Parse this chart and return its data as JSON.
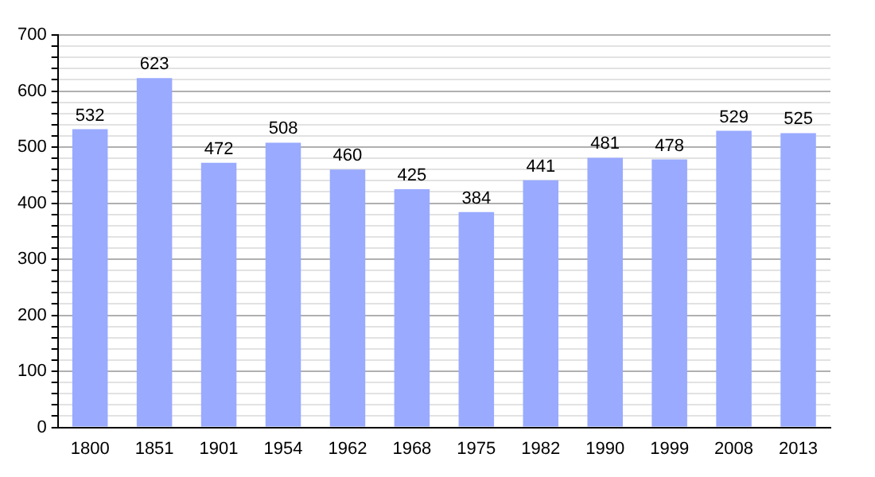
{
  "chart_data": {
    "type": "bar",
    "categories": [
      "1800",
      "1851",
      "1901",
      "1954",
      "1962",
      "1968",
      "1975",
      "1982",
      "1990",
      "1999",
      "2008",
      "2013"
    ],
    "values": [
      532,
      623,
      472,
      508,
      460,
      425,
      384,
      441,
      481,
      478,
      529,
      525
    ],
    "color": "#99aaff",
    "ylim": [
      0,
      700
    ],
    "yticks": [
      0,
      {
        "value": 20,
        "label": null
      },
      {
        "value": 40,
        "label": null
      },
      {
        "value": 60,
        "label": null
      },
      {
        "value": 80,
        "label": null
      },
      100,
      {
        "value": 120,
        "label": null
      },
      {
        "value": 140,
        "label": null
      },
      {
        "value": 160,
        "label": null
      },
      {
        "value": 180,
        "label": null
      },
      200,
      {
        "value": 220,
        "label": null
      },
      {
        "value": 240,
        "label": null
      },
      {
        "value": 260,
        "label": null
      },
      {
        "value": 280,
        "label": null
      },
      300,
      {
        "value": 320,
        "label": null
      },
      {
        "value": 340,
        "label": null
      },
      {
        "value": 360,
        "label": null
      },
      {
        "value": 380,
        "label": null
      },
      400,
      {
        "value": 420,
        "label": null
      },
      {
        "value": 440,
        "label": null
      },
      {
        "value": 460,
        "label": null
      },
      {
        "value": 480,
        "label": null
      },
      500,
      {
        "value": 520,
        "label": null
      },
      {
        "value": 540,
        "label": null
      },
      {
        "value": 560,
        "label": null
      },
      {
        "value": 580,
        "label": null
      },
      600,
      {
        "value": 620,
        "label": null
      },
      {
        "value": 640,
        "label": null
      },
      {
        "value": 660,
        "label": null
      },
      {
        "value": 680,
        "label": null
      },
      700
    ],
    "grid": true,
    "data_labels": true
  }
}
